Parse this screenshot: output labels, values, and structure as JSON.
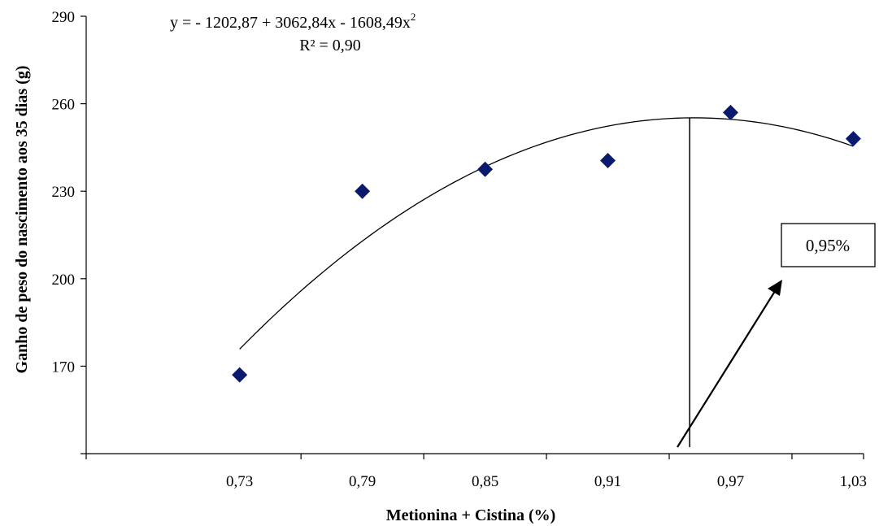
{
  "chart_data": {
    "type": "scatter",
    "xlabel": "Metionina + Cistina (%)",
    "ylabel": "Ganho de peso do nascimento aos 35 dias (g)",
    "x_tick_labels": [
      "0,73",
      "0,79",
      "0,85",
      "0,91",
      "0,97",
      "1,03"
    ],
    "x_ticks": [
      0.73,
      0.79,
      0.85,
      0.91,
      0.97,
      1.03
    ],
    "y_tick_labels": [
      "170",
      "200",
      "230",
      "260",
      "290"
    ],
    "y_ticks": [
      170,
      200,
      230,
      260,
      290
    ],
    "xlim": [
      0.655,
      1.035
    ],
    "ylim": [
      140,
      290
    ],
    "grid": false,
    "series": [
      {
        "x": [
          0.73,
          0.79,
          0.85,
          0.91,
          0.97,
          1.03
        ],
        "y": [
          167,
          230,
          237.5,
          240.5,
          257,
          248
        ],
        "marker": "diamond",
        "color": "#0a1a6e"
      }
    ],
    "trendline": {
      "equation_prefix": "y = - 1202,87 + 3062,84x - 1608,49x",
      "equation_superscript": "2",
      "r2_label": "R² = 0,90",
      "coefficients": [
        -1202.87,
        3062.84,
        -1608.49
      ],
      "x_range": [
        0.73,
        1.03
      ],
      "color": "#000000"
    },
    "annotation": {
      "label": "0,95%",
      "x": 0.95
    }
  }
}
